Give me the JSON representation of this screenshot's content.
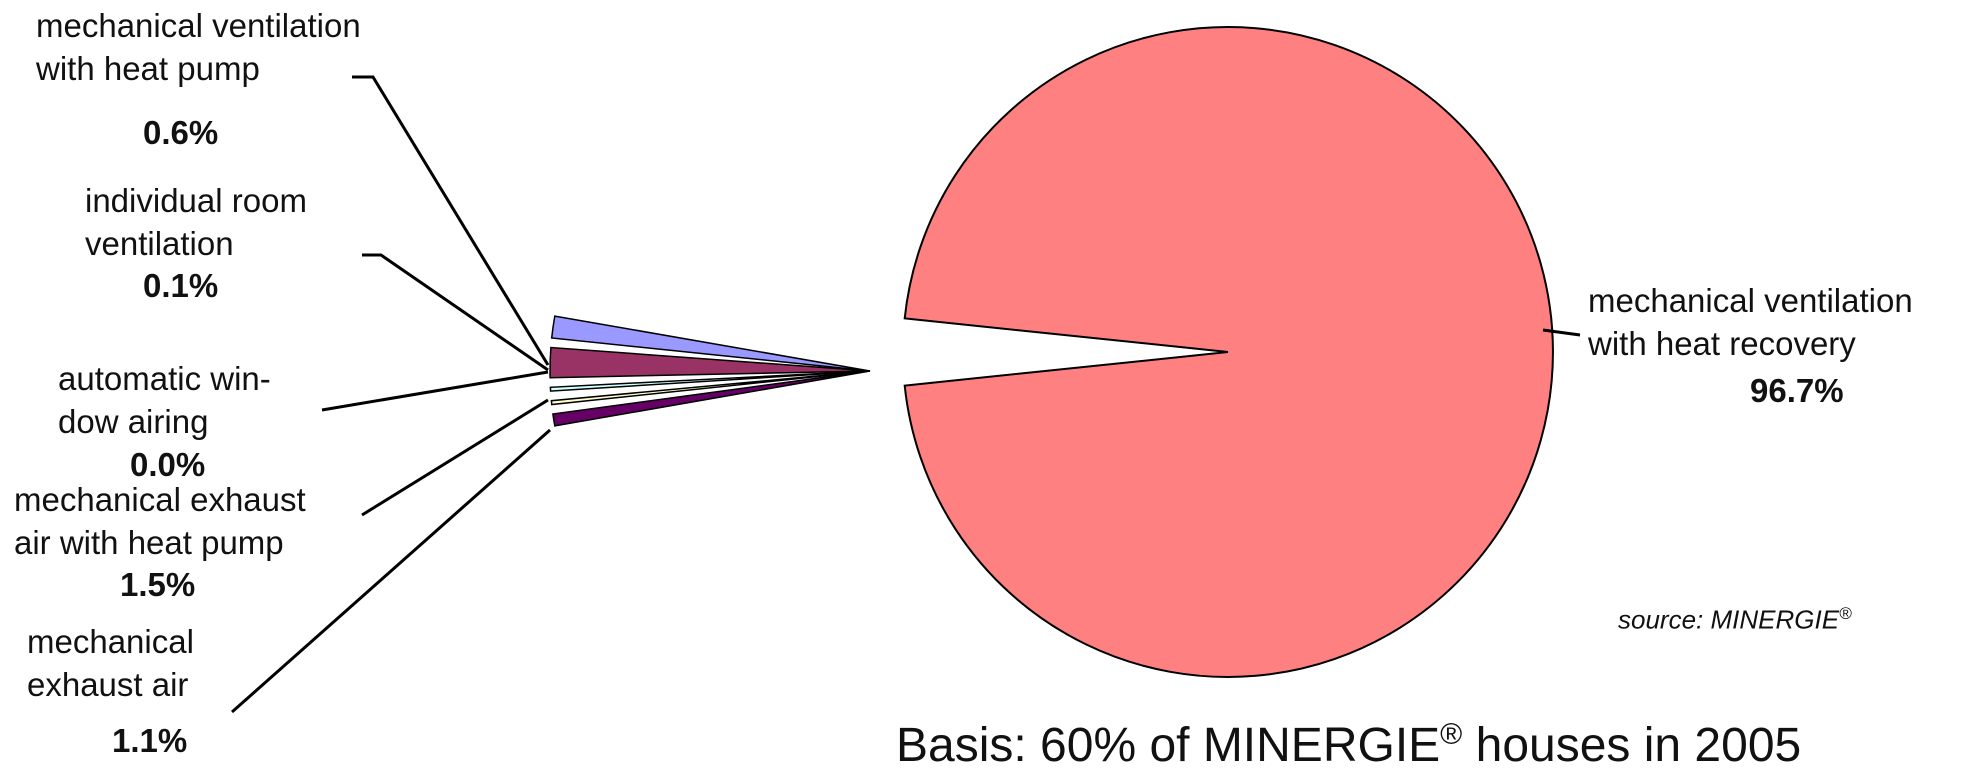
{
  "chart_data": {
    "type": "pie",
    "slices": [
      {
        "label": "mechanical ventilation\nwith heat recovery",
        "value": 96.7,
        "value_label": "96.7%",
        "color": "#ff8080"
      },
      {
        "label": "mechanical ventilation\nwith heat pump",
        "value": 0.6,
        "value_label": "0.6%",
        "color": "#660066"
      },
      {
        "label": "individual room\nventilation",
        "value": 0.1,
        "value_label": "0.1%",
        "color": "#ffffcc"
      },
      {
        "label": "automatic win-\ndow airing",
        "value": 0.0,
        "value_label": "0.0%",
        "color": "#ccffff"
      },
      {
        "label": "mechanical exhaust\nair with heat pump",
        "value": 1.5,
        "value_label": "1.5%",
        "color": "#993366"
      },
      {
        "label": "mechanical\nexhaust air",
        "value": 1.1,
        "value_label": "1.1%",
        "color": "#9999ff"
      }
    ],
    "exploded_slices": "minor slices pulled out to the left",
    "legend": "none"
  },
  "source": {
    "text": "source: MINERGIE",
    "mark": "®"
  },
  "basis": {
    "prefix": "Basis: 60% of MINERGIE",
    "mark": "®",
    "suffix": " houses in 2005"
  }
}
